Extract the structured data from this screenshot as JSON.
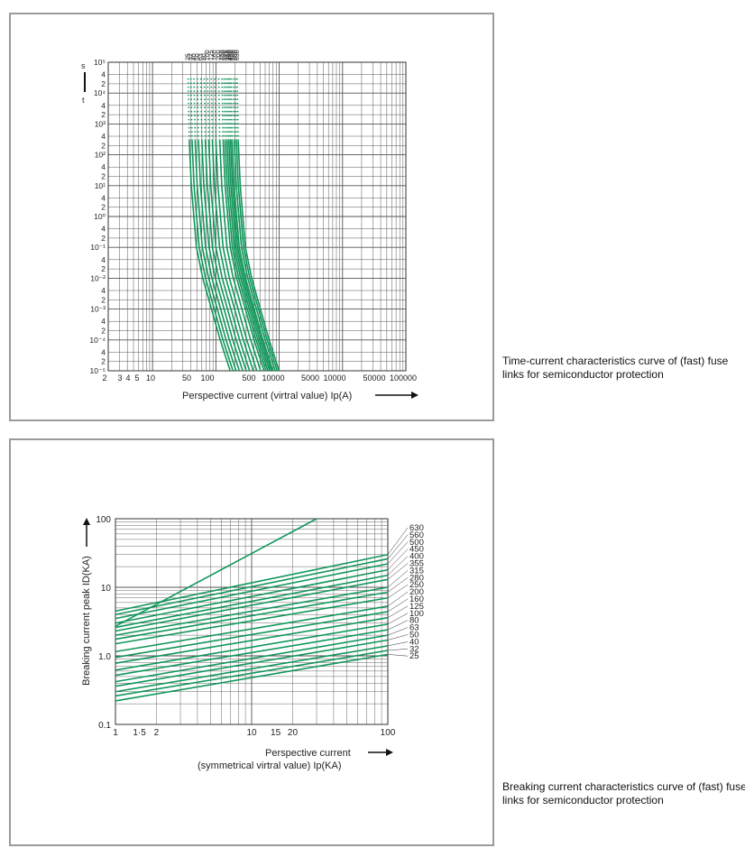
{
  "colors": {
    "curve": "#11965a",
    "grid": "#555555",
    "frame": "#9a9a9a"
  },
  "chart_data": [
    {
      "type": "line",
      "xlabel": "Perspective current (virtral value) Ip(A)",
      "ylabel_top": "s",
      "ylabel": "t",
      "x_tick_labels": [
        "2",
        "3",
        "4",
        "5",
        "10",
        "50",
        "100",
        "500",
        "10000",
        "5000",
        "10000",
        "50000",
        "100000"
      ],
      "y_decade_labels": [
        "10⁵",
        "10⁴",
        "10³",
        "10²",
        "10¹",
        "10⁰",
        "10⁻¹",
        "10⁻²",
        "10⁻³",
        "10⁻⁴",
        "10⁻⁵"
      ],
      "y_minor_labels": [
        "4",
        "2"
      ],
      "ylim": [
        1e-05,
        100000
      ],
      "log_x": true,
      "log_y": true,
      "grid": true,
      "series_labels": [
        "25",
        "32",
        "40",
        "50",
        "63",
        "80",
        "100",
        "125",
        "160",
        "200",
        "250",
        "280",
        "315",
        "355",
        "400",
        "450",
        "500",
        "560",
        "630"
      ],
      "curve_shape_points": [
        [
          1,
          30000
        ],
        [
          1.04,
          300
        ],
        [
          1.12,
          10
        ],
        [
          1.35,
          0.1
        ],
        [
          1.7,
          0.01
        ],
        [
          3.2,
          0.0001
        ],
        [
          4.6,
          1e-05
        ]
      ],
      "reference_current_at_300s": [
        38,
        42,
        47,
        53,
        60,
        68,
        77,
        88,
        100,
        115,
        130,
        140,
        150,
        160,
        170,
        180,
        195,
        210,
        225
      ]
    },
    {
      "type": "line",
      "xlabel": "Perspective current",
      "xlabel2": "(symmetrical virtral value) Ip(KA)",
      "ylabel": "Breaking current peak ID(KA)",
      "x_tick_labels": [
        "1",
        "1·5",
        "2",
        "10",
        "15",
        "20",
        "100"
      ],
      "y_tick_labels": [
        "100",
        "10",
        "1.0",
        "0.1"
      ],
      "xlim": [
        1,
        100
      ],
      "ylim": [
        0.1,
        100
      ],
      "log_x": true,
      "log_y": true,
      "grid": true,
      "series": [
        {
          "name": "25",
          "values": [
            0.22,
            1.05
          ]
        },
        {
          "name": "32",
          "values": [
            0.26,
            1.2
          ]
        },
        {
          "name": "40",
          "values": [
            0.3,
            1.4
          ]
        },
        {
          "name": "50",
          "values": [
            0.36,
            1.7
          ]
        },
        {
          "name": "63",
          "values": [
            0.42,
            2.0
          ]
        },
        {
          "name": "80",
          "values": [
            0.52,
            2.4
          ]
        },
        {
          "name": "100",
          "values": [
            0.62,
            2.9
          ]
        },
        {
          "name": "125",
          "values": [
            0.78,
            3.6
          ]
        },
        {
          "name": "160",
          "values": [
            0.95,
            4.4
          ]
        },
        {
          "name": "200",
          "values": [
            1.15,
            5.3
          ]
        },
        {
          "name": "250",
          "values": [
            1.5,
            7.0
          ]
        },
        {
          "name": "280",
          "values": [
            1.75,
            8.5
          ]
        },
        {
          "name": "315",
          "values": [
            2.0,
            10
          ]
        },
        {
          "name": "355",
          "values": [
            2.3,
            13
          ]
        },
        {
          "name": "400",
          "values": [
            2.6,
            15
          ]
        },
        {
          "name": "450",
          "values": [
            3.0,
            18
          ]
        },
        {
          "name": "500",
          "values": [
            3.5,
            22
          ]
        },
        {
          "name": "560",
          "values": [
            4.0,
            26
          ]
        },
        {
          "name": "630",
          "values": [
            4.5,
            30
          ]
        }
      ],
      "limit_line": {
        "x": [
          1,
          30
        ],
        "y": [
          2.7,
          100
        ]
      },
      "x": [
        1,
        100
      ]
    }
  ],
  "captions": [
    {
      "line1": "Time-current characteristics curve of (fast) fuse",
      "line2": "links for semiconductor protection"
    },
    {
      "line1": "Breaking current characteristics curve of (fast) fuse",
      "line2": "links for semiconductor protection"
    }
  ]
}
